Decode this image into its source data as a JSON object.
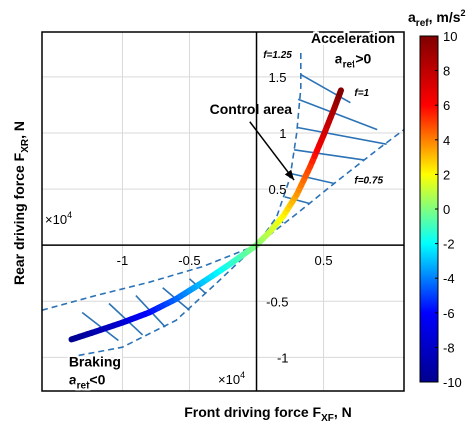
{
  "chart_data": {
    "type": "line",
    "xlabel": "Front driving force F",
    "xlabel_sub": "XF",
    "xlabel_unit": ", N",
    "ylabel": "Rear driving force F",
    "ylabel_sub": "XR",
    "ylabel_unit": ", N",
    "x_multiplier": "×10",
    "y_multiplier": "×10",
    "multiplier_exp": "4",
    "xlim": [
      -1.6,
      1.1
    ],
    "ylim": [
      -1.3,
      1.9
    ],
    "grid": true,
    "x_ticks": [
      {
        "value": -1,
        "label": "-1"
      },
      {
        "value": -0.5,
        "label": "-0.5"
      },
      {
        "value": 0.5,
        "label": "0.5"
      }
    ],
    "y_ticks": [
      {
        "value": 1.5,
        "label": "1.5"
      },
      {
        "value": 1,
        "label": "1"
      },
      {
        "value": 0.5,
        "label": "0.5"
      },
      {
        "value": -0.5,
        "label": "-0.5"
      },
      {
        "value": -1,
        "label": "-1"
      }
    ],
    "colorbar": {
      "label": "a",
      "label_sub": "ref",
      "label_unit": ", m/s",
      "label_exp": "2",
      "range": [
        -10,
        10
      ],
      "ticks": [
        {
          "value": 10,
          "label": "10"
        },
        {
          "value": 8,
          "label": "8"
        },
        {
          "value": 6,
          "label": "6"
        },
        {
          "value": 4,
          "label": "4"
        },
        {
          "value": 2,
          "label": "2"
        },
        {
          "value": 0,
          "label": "0"
        },
        {
          "value": -2,
          "label": "-2"
        },
        {
          "value": -4,
          "label": "-4"
        },
        {
          "value": -6,
          "label": "-6"
        },
        {
          "value": -8,
          "label": "-8"
        },
        {
          "value": -10,
          "label": "-10"
        }
      ],
      "colormap": [
        "#00008f",
        "#0000ff",
        "#00ffff",
        "#ffff00",
        "#ff0000",
        "#800000"
      ]
    },
    "series": [
      {
        "name": "f=1",
        "style": "thick line colored by a_ref",
        "points": [
          {
            "x": -1.38,
            "y": -0.84,
            "a": -10
          },
          {
            "x": -1.2,
            "y": -0.77,
            "a": -9
          },
          {
            "x": -1.0,
            "y": -0.69,
            "a": -7.6
          },
          {
            "x": -0.8,
            "y": -0.6,
            "a": -6
          },
          {
            "x": -0.6,
            "y": -0.48,
            "a": -4.5
          },
          {
            "x": -0.4,
            "y": -0.33,
            "a": -3
          },
          {
            "x": -0.2,
            "y": -0.17,
            "a": -1.5
          },
          {
            "x": 0.0,
            "y": 0.0,
            "a": 0
          },
          {
            "x": 0.1,
            "y": 0.12,
            "a": 1
          },
          {
            "x": 0.2,
            "y": 0.26,
            "a": 2
          },
          {
            "x": 0.3,
            "y": 0.45,
            "a": 3.5
          },
          {
            "x": 0.4,
            "y": 0.7,
            "a": 5
          },
          {
            "x": 0.5,
            "y": 0.98,
            "a": 7
          },
          {
            "x": 0.58,
            "y": 1.22,
            "a": 8.6
          },
          {
            "x": 0.63,
            "y": 1.38,
            "a": 10
          }
        ]
      },
      {
        "name": "f=1.25",
        "style": "dashed",
        "points": [
          {
            "x": -1.6,
            "y": -0.58
          },
          {
            "x": -1.2,
            "y": -0.45
          },
          {
            "x": -0.8,
            "y": -0.33
          },
          {
            "x": -0.4,
            "y": -0.19
          },
          {
            "x": 0.0,
            "y": 0.0
          },
          {
            "x": 0.15,
            "y": 0.25
          },
          {
            "x": 0.25,
            "y": 0.6
          },
          {
            "x": 0.3,
            "y": 1.0
          },
          {
            "x": 0.33,
            "y": 1.4
          },
          {
            "x": 0.33,
            "y": 1.73
          }
        ]
      },
      {
        "name": "f=0.75",
        "style": "dashed",
        "points": [
          {
            "x": -1.4,
            "y": -1.0
          },
          {
            "x": -1.0,
            "y": -0.91
          },
          {
            "x": -0.6,
            "y": -0.67
          },
          {
            "x": -0.3,
            "y": -0.34
          },
          {
            "x": 0.0,
            "y": 0.0
          },
          {
            "x": 0.3,
            "y": 0.28
          },
          {
            "x": 0.6,
            "y": 0.57
          },
          {
            "x": 0.9,
            "y": 0.85
          },
          {
            "x": 1.1,
            "y": 1.03
          }
        ]
      }
    ],
    "control_lines": [
      [
        {
          "x": -1.3,
          "y": -0.6
        },
        {
          "x": -1.03,
          "y": -0.85
        }
      ],
      [
        {
          "x": -1.1,
          "y": -0.52
        },
        {
          "x": -0.85,
          "y": -0.8
        }
      ],
      [
        {
          "x": -0.9,
          "y": -0.45
        },
        {
          "x": -0.68,
          "y": -0.73
        }
      ],
      [
        {
          "x": -0.7,
          "y": -0.38
        },
        {
          "x": -0.5,
          "y": -0.58
        }
      ],
      [
        {
          "x": -0.5,
          "y": -0.3
        },
        {
          "x": -0.38,
          "y": -0.43
        }
      ],
      [
        {
          "x": 0.16,
          "y": 0.23
        },
        {
          "x": 0.2,
          "y": 0.2
        }
      ],
      [
        {
          "x": 0.21,
          "y": 0.43
        },
        {
          "x": 0.4,
          "y": 0.37
        }
      ],
      [
        {
          "x": 0.25,
          "y": 0.64
        },
        {
          "x": 0.58,
          "y": 0.55
        }
      ],
      [
        {
          "x": 0.28,
          "y": 0.85
        },
        {
          "x": 0.8,
          "y": 0.76
        }
      ],
      [
        {
          "x": 0.3,
          "y": 1.05
        },
        {
          "x": 0.97,
          "y": 0.9
        }
      ],
      [
        {
          "x": 0.31,
          "y": 1.3
        },
        {
          "x": 0.9,
          "y": 1.03
        }
      ],
      [
        {
          "x": 0.33,
          "y": 1.52
        },
        {
          "x": 0.7,
          "y": 1.27
        }
      ]
    ],
    "annotations": [
      {
        "id": "curve-label-f125",
        "text": "f=1.25",
        "x": 0.05,
        "y": 1.67,
        "style": "italic-bold"
      },
      {
        "id": "curve-label-f1",
        "text": "f=1",
        "x": 0.73,
        "y": 1.33,
        "style": "italic-bold"
      },
      {
        "id": "curve-label-f075",
        "text": "f=0.75",
        "x": 0.73,
        "y": 0.55,
        "style": "italic-bold"
      },
      {
        "id": "control-area-label",
        "text": "Control area",
        "x": -0.35,
        "y": 1.17,
        "style": "bold"
      },
      {
        "id": "acceleration-label",
        "text": "Acceleration",
        "x": 0.72,
        "y": 1.8,
        "style": "bold"
      },
      {
        "id": "braking-label",
        "text": "Braking",
        "x": -1.4,
        "y": -1.08,
        "style": "bold"
      }
    ],
    "condition_labels": [
      {
        "id": "accel-condition",
        "prefix": "a",
        "sub": "ref",
        "suffix": ">0",
        "x": 0.72,
        "y": 1.62
      },
      {
        "id": "brake-condition",
        "prefix": "a",
        "sub": "ref",
        "suffix": "<0",
        "x": -1.4,
        "y": -1.24
      }
    ],
    "arrow": {
      "from": {
        "x": -0.05,
        "y": 1.1
      },
      "to": {
        "x": 0.28,
        "y": 0.58
      }
    }
  }
}
